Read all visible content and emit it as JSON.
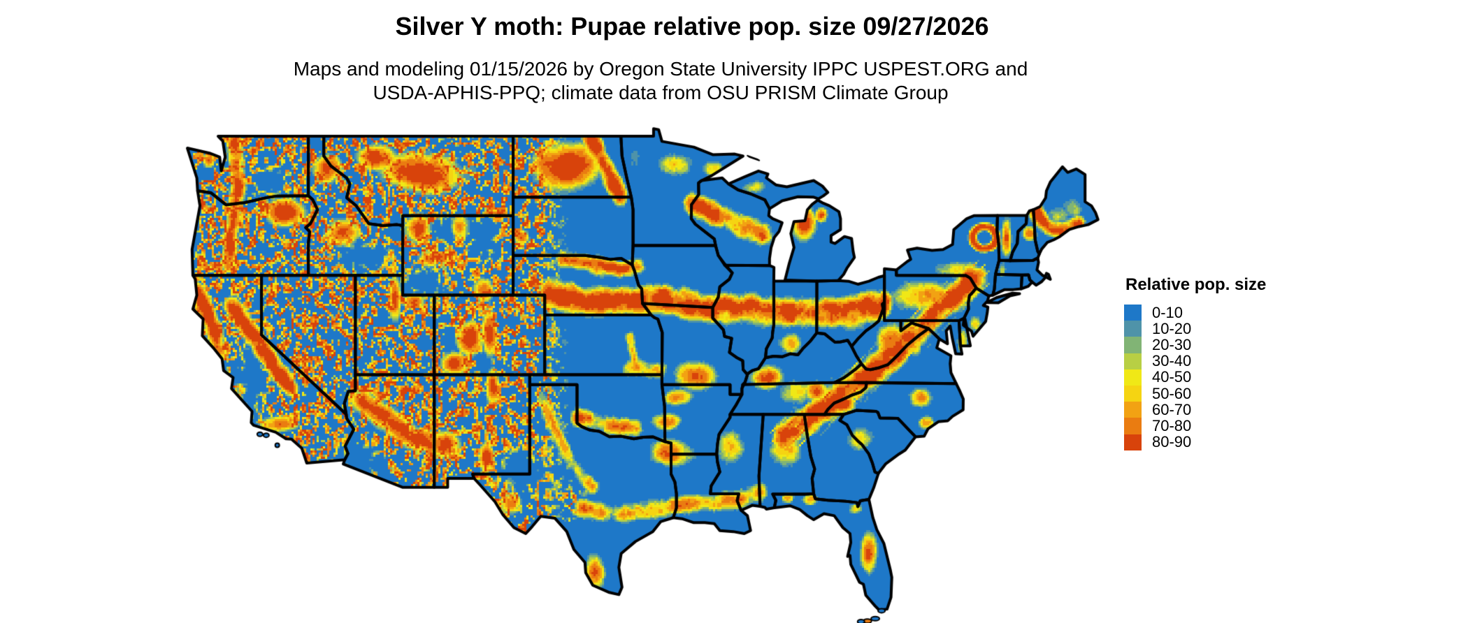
{
  "header": {
    "title": "Silver Y moth: Pupae relative pop. size 09/27/2026",
    "subtitle_lines": [
      "Maps and modeling 01/15/2026 by Oregon State University IPPC USPEST.ORG and",
      "USDA-APHIS-PPQ; climate data from OSU PRISM Climate Group"
    ]
  },
  "legend": {
    "title": "Relative pop. size",
    "entries": [
      {
        "label": "0-10",
        "color": "#1e78c8"
      },
      {
        "label": "10-20",
        "color": "#4f93a9"
      },
      {
        "label": "20-30",
        "color": "#81b475"
      },
      {
        "label": "30-40",
        "color": "#b8cf44"
      },
      {
        "label": "40-50",
        "color": "#f0e816"
      },
      {
        "label": "50-60",
        "color": "#f5d412"
      },
      {
        "label": "60-70",
        "color": "#f2a213"
      },
      {
        "label": "70-80",
        "color": "#ea7c11"
      },
      {
        "label": "80-90",
        "color": "#d8430b"
      }
    ]
  },
  "map": {
    "background_color": "#ffffff",
    "state_border_color": "#000000",
    "base_fill_color": "#1e78c8"
  }
}
